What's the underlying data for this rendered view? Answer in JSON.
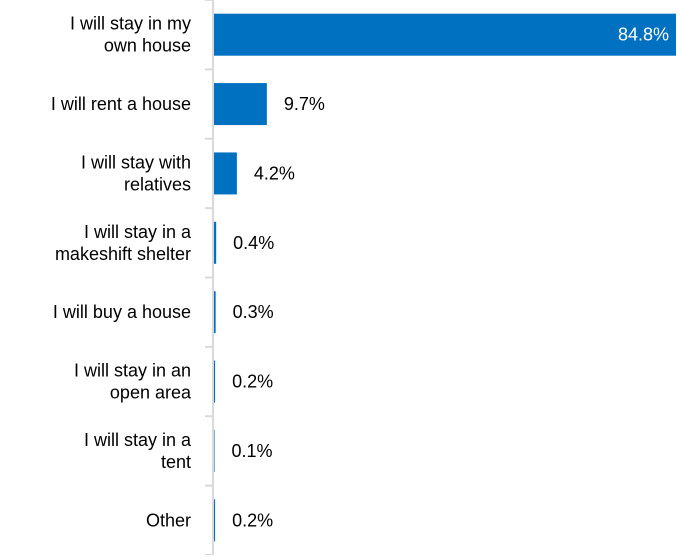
{
  "chart_data": {
    "type": "bar",
    "orientation": "horizontal",
    "categories": [
      [
        "I will stay in my",
        "own house"
      ],
      [
        "I will rent a house"
      ],
      [
        "I will stay with",
        "relatives"
      ],
      [
        "I will stay in a",
        "makeshift shelter"
      ],
      [
        "I will buy a house"
      ],
      [
        "I will stay in an",
        "open area"
      ],
      [
        "I will stay in a",
        "tent"
      ],
      [
        "Other"
      ]
    ],
    "values": [
      84.8,
      9.7,
      4.2,
      0.4,
      0.3,
      0.2,
      0.1,
      0.2
    ],
    "value_labels": [
      "84.8%",
      "9.7%",
      "4.2%",
      "0.4%",
      "0.3%",
      "0.2%",
      "0.1%",
      "0.2%"
    ],
    "xlim": [
      0,
      84.8
    ],
    "bar_color": "#0070c0",
    "axis_color": "#d9d9d9",
    "label_color": "#000000",
    "inside_label_color": "#ffffff",
    "grid": false,
    "legend": "none"
  }
}
